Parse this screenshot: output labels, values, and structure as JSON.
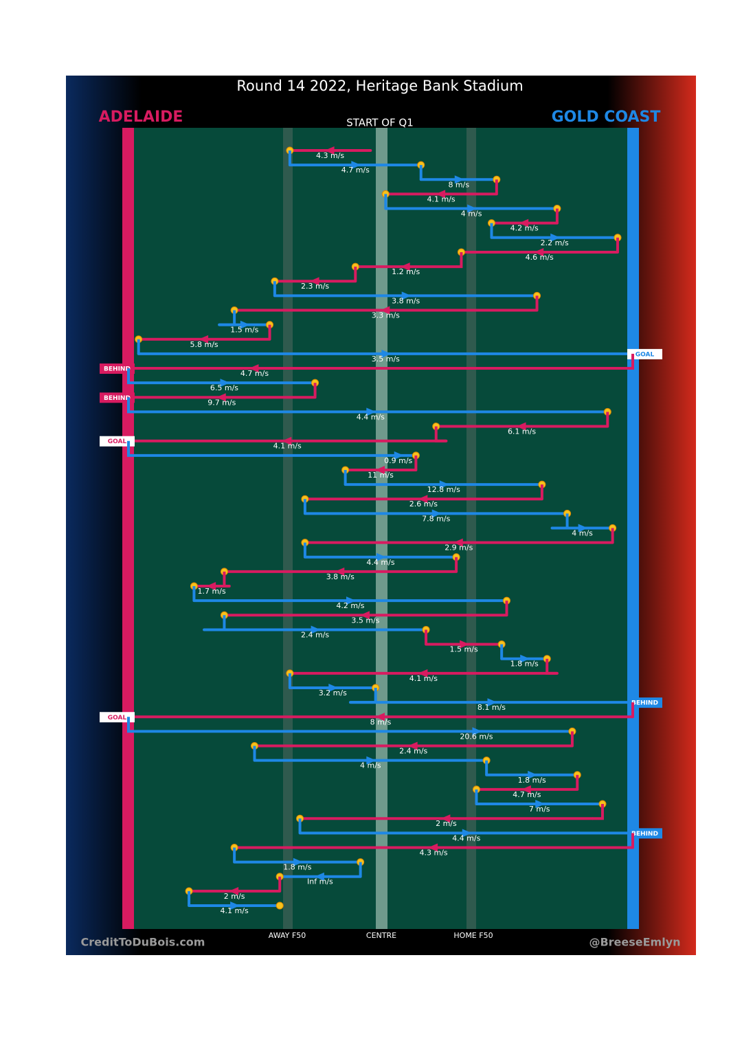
{
  "chart_data": {
    "type": "chain",
    "title": "Round 14 2022, Heritage Bank Stadium",
    "period_label": "START OF Q1",
    "teams": [
      {
        "name": "ADELAIDE",
        "color": "#d81b60"
      },
      {
        "name": "GOLD COAST",
        "color": "#1e88e5"
      }
    ],
    "xlim": [
      0,
      100
    ],
    "zone_labels": [
      "AWAY F50",
      "CENTRE",
      "HOME F50"
    ],
    "credits": [
      "CreditToDuBois.com",
      "@BreeseEmlyn"
    ],
    "segments": [
      {
        "team": "ADELAIDE",
        "from": 48,
        "to": 32,
        "speed": "4.3 m/s"
      },
      {
        "team": "GOLD COAST",
        "from": 32,
        "to": 58,
        "speed": "4.7 m/s"
      },
      {
        "team": "GOLD COAST",
        "from": 58,
        "to": 73,
        "speed": "8 m/s"
      },
      {
        "team": "ADELAIDE",
        "from": 73,
        "to": 51,
        "speed": "4.1 m/s"
      },
      {
        "team": "GOLD COAST",
        "from": 51,
        "to": 85,
        "speed": "4 m/s"
      },
      {
        "team": "ADELAIDE",
        "from": 85,
        "to": 72,
        "speed": "4.2 m/s"
      },
      {
        "team": "GOLD COAST",
        "from": 72,
        "to": 97,
        "speed": "2.2 m/s"
      },
      {
        "team": "ADELAIDE",
        "from": 97,
        "to": 66,
        "speed": "4.6 m/s"
      },
      {
        "team": "ADELAIDE",
        "from": 65,
        "to": 45,
        "speed": "1.2 m/s"
      },
      {
        "team": "ADELAIDE",
        "from": 45,
        "to": 29,
        "speed": "2.3 m/s"
      },
      {
        "team": "GOLD COAST",
        "from": 29,
        "to": 81,
        "speed": "3.8 m/s"
      },
      {
        "team": "ADELAIDE",
        "from": 81,
        "to": 21,
        "speed": "3.3 m/s"
      },
      {
        "team": "GOLD COAST",
        "from": 18,
        "to": 28,
        "speed": "1.5 m/s"
      },
      {
        "team": "ADELAIDE",
        "from": 28,
        "to": 2,
        "speed": "5.8 m/s"
      },
      {
        "team": "GOLD COAST",
        "from": 2,
        "to": 100,
        "speed": "3.5 m/s",
        "result": "GOAL"
      },
      {
        "team": "ADELAIDE",
        "from": 50,
        "to": 0,
        "speed": "4.7 m/s",
        "result": "BEHIND"
      },
      {
        "team": "GOLD COAST",
        "from": 1,
        "to": 37,
        "speed": "6.5 m/s"
      },
      {
        "team": "ADELAIDE",
        "from": 37,
        "to": 0,
        "speed": "9.7 m/s",
        "result": "BEHIND"
      },
      {
        "team": "GOLD COAST",
        "from": 1,
        "to": 95,
        "speed": "4.4 m/s"
      },
      {
        "team": "ADELAIDE",
        "from": 95,
        "to": 61,
        "speed": "6.1 m/s"
      },
      {
        "team": "ADELAIDE",
        "from": 63,
        "to": 0,
        "speed": "4.1 m/s",
        "result": "GOAL"
      },
      {
        "team": "GOLD COAST",
        "from": 50,
        "to": 57,
        "speed": "0.9 m/s"
      },
      {
        "team": "ADELAIDE",
        "from": 57,
        "to": 43,
        "speed": "11 m/s"
      },
      {
        "team": "GOLD COAST",
        "from": 43,
        "to": 82,
        "speed": "12.8 m/s"
      },
      {
        "team": "ADELAIDE",
        "from": 82,
        "to": 35,
        "speed": "2.6 m/s"
      },
      {
        "team": "GOLD COAST",
        "from": 35,
        "to": 87,
        "speed": "7.8 m/s"
      },
      {
        "team": "GOLD COAST",
        "from": 84,
        "to": 96,
        "speed": "4 m/s"
      },
      {
        "team": "ADELAIDE",
        "from": 96,
        "to": 35,
        "speed": "2.9 m/s"
      },
      {
        "team": "GOLD COAST",
        "from": 35,
        "to": 65,
        "speed": "4.4 m/s"
      },
      {
        "team": "ADELAIDE",
        "from": 65,
        "to": 19,
        "speed": "3.8 m/s"
      },
      {
        "team": "ADELAIDE",
        "from": 20,
        "to": 13,
        "speed": "1.7 m/s"
      },
      {
        "team": "GOLD COAST",
        "from": 13,
        "to": 75,
        "speed": "4.2 m/s"
      },
      {
        "team": "ADELAIDE",
        "from": 75,
        "to": 19,
        "speed": "3.5 m/s"
      },
      {
        "team": "GOLD COAST",
        "from": 15,
        "to": 59,
        "speed": "2.4 m/s"
      },
      {
        "team": "ADELAIDE",
        "from": 59,
        "to": 74,
        "speed": "1.5 m/s"
      },
      {
        "team": "GOLD COAST",
        "from": 74,
        "to": 83,
        "speed": "1.8 m/s"
      },
      {
        "team": "ADELAIDE",
        "from": 85,
        "to": 32,
        "speed": "4.1 m/s"
      },
      {
        "team": "GOLD COAST",
        "from": 32,
        "to": 49,
        "speed": "3.2 m/s"
      },
      {
        "team": "GOLD COAST",
        "from": 44,
        "to": 100,
        "speed": "8.1 m/s",
        "result": "BEHIND"
      },
      {
        "team": "ADELAIDE",
        "from": 100,
        "to": 0,
        "speed": "8 m/s",
        "result": "GOAL"
      },
      {
        "team": "GOLD COAST",
        "from": 50,
        "to": 88,
        "speed": "20.6 m/s"
      },
      {
        "team": "ADELAIDE",
        "from": 88,
        "to": 25,
        "speed": "2.4 m/s"
      },
      {
        "team": "GOLD COAST",
        "from": 25,
        "to": 71,
        "speed": "4 m/s"
      },
      {
        "team": "GOLD COAST",
        "from": 71,
        "to": 89,
        "speed": "1.8 m/s"
      },
      {
        "team": "ADELAIDE",
        "from": 89,
        "to": 69,
        "speed": "4.7 m/s"
      },
      {
        "team": "GOLD COAST",
        "from": 69,
        "to": 94,
        "speed": "7 m/s"
      },
      {
        "team": "ADELAIDE",
        "from": 92,
        "to": 34,
        "speed": "2 m/s"
      },
      {
        "team": "GOLD COAST",
        "from": 34,
        "to": 100,
        "speed": "4.4 m/s",
        "result": "BEHIND"
      },
      {
        "team": "ADELAIDE",
        "from": 100,
        "to": 21,
        "speed": "4.3 m/s"
      },
      {
        "team": "GOLD COAST",
        "from": 21,
        "to": 46,
        "speed": "1.8 m/s"
      },
      {
        "team": "GOLD COAST",
        "from": 46,
        "to": 30,
        "speed": "Inf m/s"
      },
      {
        "team": "ADELAIDE",
        "from": 30,
        "to": 12,
        "speed": "2 m/s"
      },
      {
        "team": "GOLD COAST",
        "from": 12,
        "to": 30,
        "speed": "4.1 m/s"
      }
    ]
  }
}
